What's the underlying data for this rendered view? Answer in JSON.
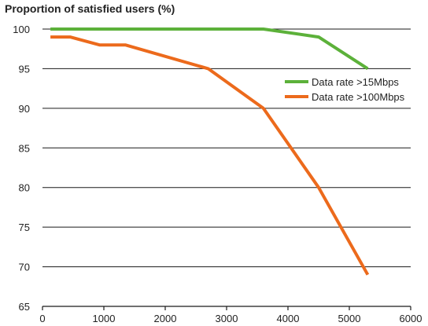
{
  "chart_data": {
    "type": "line",
    "title": "Proportion of satisfied users (%)",
    "xlabel": "",
    "ylabel": "",
    "xlim": [
      0,
      6000
    ],
    "ylim": [
      65,
      100
    ],
    "x_ticks": [
      0,
      1000,
      2000,
      3000,
      4000,
      5000,
      6000
    ],
    "y_ticks": [
      65,
      70,
      75,
      80,
      85,
      90,
      95,
      100
    ],
    "grid": true,
    "legend_position": "right",
    "series": [
      {
        "name": "Data rate >15Mbps",
        "color": "#5cb13a",
        "x": [
          130,
          3600,
          4500,
          5300
        ],
        "y": [
          100,
          100,
          99,
          95
        ]
      },
      {
        "name": "Data rate >100Mbps",
        "color": "#ec6a1c",
        "x": [
          130,
          450,
          930,
          1350,
          2700,
          3600,
          4500,
          5300
        ],
        "y": [
          99,
          99,
          98,
          98,
          95,
          90,
          80,
          69
        ]
      }
    ]
  }
}
